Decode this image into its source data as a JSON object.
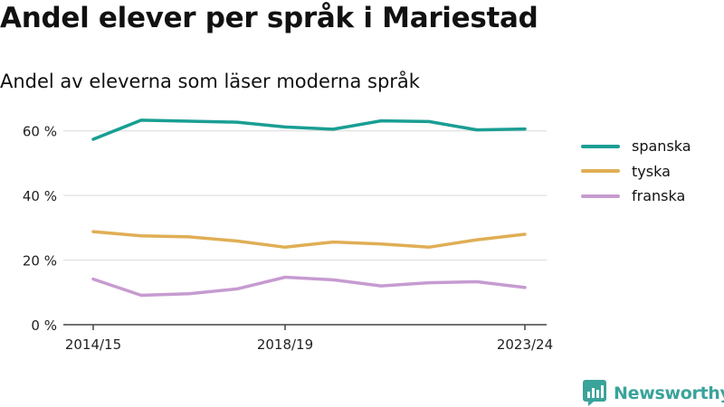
{
  "header": {
    "title": "Andel elever per språk i Mariestad",
    "subtitle": "Andel av eleverna som läser moderna språk"
  },
  "brand": {
    "name": "Newsworthy",
    "icon": "newsworthy-logo-icon",
    "color": "#3aa39a"
  },
  "chart_data": {
    "type": "line",
    "title": "Andel elever per språk i Mariestad",
    "subtitle": "Andel av eleverna som läser moderna språk",
    "xlabel": "",
    "ylabel": "",
    "ylim": [
      0,
      70
    ],
    "yticks": [
      0,
      20,
      40,
      60
    ],
    "ytick_labels": [
      "0 %",
      "20 %",
      "40 %",
      "60 %"
    ],
    "x": [
      "2014/15",
      "2015/16",
      "2016/17",
      "2017/18",
      "2018/19",
      "2019/20",
      "2020/21",
      "2021/22",
      "2022/23",
      "2023/24"
    ],
    "xtick_labels": [
      "2014/15",
      "2018/19",
      "2023/24"
    ],
    "grid": true,
    "legend": "right",
    "series": [
      {
        "name": "spanska",
        "color": "#1a9e93",
        "values": [
          57.4,
          63.3,
          63.0,
          62.7,
          61.2,
          60.5,
          63.1,
          62.9,
          60.3,
          60.6
        ]
      },
      {
        "name": "tyska",
        "color": "#e0ae55",
        "values": [
          28.8,
          27.5,
          27.2,
          25.9,
          24.0,
          25.6,
          25.0,
          24.0,
          26.3,
          28.0
        ]
      },
      {
        "name": "franska",
        "color": "#c69bd0",
        "values": [
          14.1,
          9.1,
          9.6,
          11.1,
          14.7,
          13.9,
          12.0,
          13.0,
          13.3,
          11.5
        ]
      }
    ]
  }
}
